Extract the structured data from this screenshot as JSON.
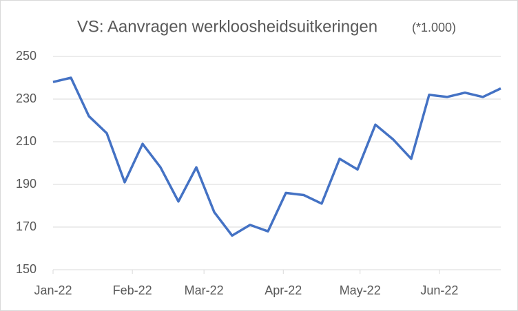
{
  "chart_data": {
    "type": "line",
    "title": "VS: Aanvragen werkloosheidsuitkeringen",
    "subtitle": "(*1.000)",
    "x": [
      0,
      7,
      14,
      21,
      28,
      35,
      42,
      49,
      56,
      63,
      70,
      77,
      84,
      91,
      98,
      105,
      112,
      119,
      126,
      133,
      140,
      147,
      154,
      161,
      168,
      175
    ],
    "series": [
      {
        "color": "#4472c4",
        "values": [
          238,
          240,
          222,
          214,
          191,
          209,
          198,
          182,
          198,
          177,
          166,
          171,
          168,
          186,
          185,
          181,
          202,
          197,
          218,
          211,
          202,
          232,
          231,
          233,
          231,
          235
        ]
      }
    ],
    "xlim": [
      0,
      175
    ],
    "xticks": [
      {
        "value": 0,
        "label": "Jan-22"
      },
      {
        "value": 31,
        "label": "Feb-22"
      },
      {
        "value": 59,
        "label": "Mar-22"
      },
      {
        "value": 90,
        "label": "Apr-22"
      },
      {
        "value": 120,
        "label": "May-22"
      },
      {
        "value": 151,
        "label": "Jun-22"
      }
    ],
    "ylim": [
      150,
      250
    ],
    "yticks": [
      150,
      170,
      190,
      210,
      230,
      250
    ],
    "grid": true
  }
}
